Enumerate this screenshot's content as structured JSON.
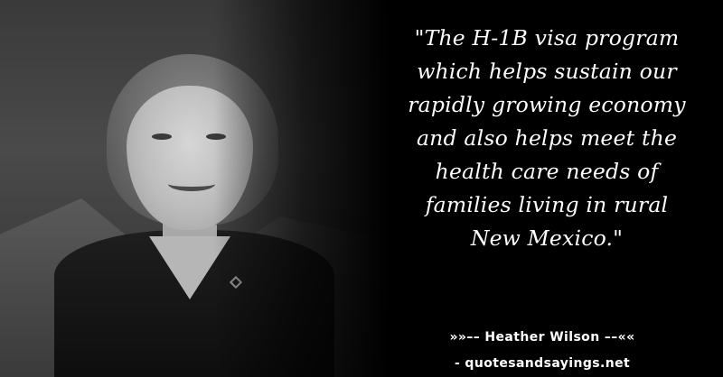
{
  "quote": {
    "lines": [
      "\"The H-1B visa program",
      "which helps sustain our",
      "rapidly growing economy",
      "and also helps meet the",
      "health care needs of",
      "families living in rural",
      "New Mexico.\""
    ]
  },
  "attribution": {
    "author": "»»–– Heather Wilson ––««",
    "source": "- quotesandsayings.net"
  },
  "colors": {
    "background": "#000000",
    "text": "#ffffff"
  }
}
